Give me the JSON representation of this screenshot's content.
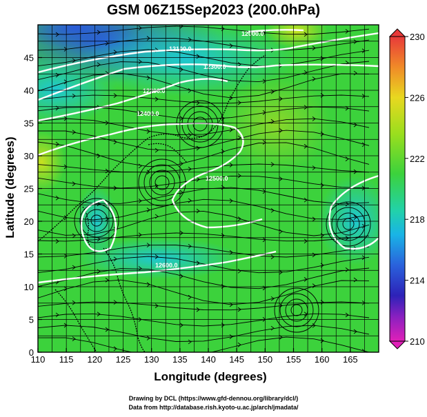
{
  "title": "GSM 06Z15Sep2023 (200.0hPa)",
  "xlabel": "Longitude (degrees)",
  "ylabel": "Latitude  (degrees)",
  "credit_line1": "Drawing by DCL (https://www.gfd-dennou.org/library/dcl/)",
  "credit_line2": "Data from http://database.rish.kyoto-u.ac.jp/arch/jmadata/",
  "map": {
    "lon_range": [
      110,
      170
    ],
    "lat_range": [
      0,
      50
    ],
    "lon_ticks": [
      "110",
      "115",
      "120",
      "125",
      "130",
      "135",
      "140",
      "145",
      "150",
      "155",
      "160",
      "165"
    ],
    "lat_ticks": [
      "0",
      "5",
      "10",
      "15",
      "20",
      "25",
      "30",
      "35",
      "40",
      "45"
    ],
    "grid": true,
    "contour_labels": [
      "12000.0",
      "12100.0",
      "12200.0",
      "12300.0",
      "12400.0",
      "12500.0",
      "12600.0"
    ]
  },
  "colorbar": {
    "range": [
      210,
      230
    ],
    "tick_labels": [
      "230",
      "226",
      "222",
      "218",
      "214",
      "210"
    ]
  },
  "colors": {
    "background": "#ffffff",
    "contour": "#ffffff",
    "streamline": "#000000",
    "field_main": "#3cd23c"
  }
}
